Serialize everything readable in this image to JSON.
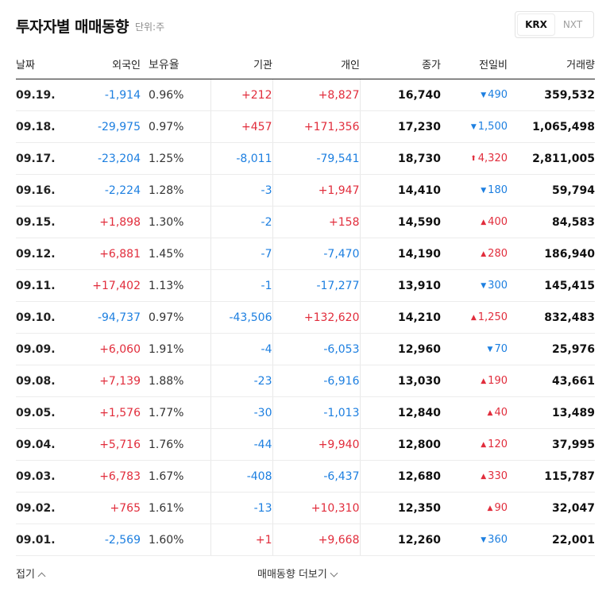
{
  "header": {
    "title": "투자자별 매매동향",
    "unit": "단위:주"
  },
  "market_toggle": {
    "options": [
      "KRX",
      "NXT"
    ],
    "selected": "KRX"
  },
  "columns": [
    "날짜",
    "외국인",
    "보유율",
    "기관",
    "개인",
    "종가",
    "전일비",
    "거래량"
  ],
  "rows": [
    {
      "date": "09.19.",
      "foreign": "-1,914",
      "ratio": "0.96%",
      "inst": "+212",
      "indiv": "+8,827",
      "close": "16,740",
      "change": "490",
      "dir": "down",
      "volume": "359,532"
    },
    {
      "date": "09.18.",
      "foreign": "-29,975",
      "ratio": "0.97%",
      "inst": "+457",
      "indiv": "+171,356",
      "close": "17,230",
      "change": "1,500",
      "dir": "down",
      "volume": "1,065,498"
    },
    {
      "date": "09.17.",
      "foreign": "-23,204",
      "ratio": "1.25%",
      "inst": "-8,011",
      "indiv": "-79,541",
      "close": "18,730",
      "change": "4,320",
      "dir": "upper",
      "volume": "2,811,005"
    },
    {
      "date": "09.16.",
      "foreign": "-2,224",
      "ratio": "1.28%",
      "inst": "-3",
      "indiv": "+1,947",
      "close": "14,410",
      "change": "180",
      "dir": "down",
      "volume": "59,794"
    },
    {
      "date": "09.15.",
      "foreign": "+1,898",
      "ratio": "1.30%",
      "inst": "-2",
      "indiv": "+158",
      "close": "14,590",
      "change": "400",
      "dir": "up",
      "volume": "84,583"
    },
    {
      "date": "09.12.",
      "foreign": "+6,881",
      "ratio": "1.45%",
      "inst": "-7",
      "indiv": "-7,470",
      "close": "14,190",
      "change": "280",
      "dir": "up",
      "volume": "186,940"
    },
    {
      "date": "09.11.",
      "foreign": "+17,402",
      "ratio": "1.13%",
      "inst": "-1",
      "indiv": "-17,277",
      "close": "13,910",
      "change": "300",
      "dir": "down",
      "volume": "145,415"
    },
    {
      "date": "09.10.",
      "foreign": "-94,737",
      "ratio": "0.97%",
      "inst": "-43,506",
      "indiv": "+132,620",
      "close": "14,210",
      "change": "1,250",
      "dir": "up",
      "volume": "832,483"
    },
    {
      "date": "09.09.",
      "foreign": "+6,060",
      "ratio": "1.91%",
      "inst": "-4",
      "indiv": "-6,053",
      "close": "12,960",
      "change": "70",
      "dir": "down",
      "volume": "25,976"
    },
    {
      "date": "09.08.",
      "foreign": "+7,139",
      "ratio": "1.88%",
      "inst": "-23",
      "indiv": "-6,916",
      "close": "13,030",
      "change": "190",
      "dir": "up",
      "volume": "43,661"
    },
    {
      "date": "09.05.",
      "foreign": "+1,576",
      "ratio": "1.77%",
      "inst": "-30",
      "indiv": "-1,013",
      "close": "12,840",
      "change": "40",
      "dir": "up",
      "volume": "13,489"
    },
    {
      "date": "09.04.",
      "foreign": "+5,716",
      "ratio": "1.76%",
      "inst": "-44",
      "indiv": "+9,940",
      "close": "12,800",
      "change": "120",
      "dir": "up",
      "volume": "37,995"
    },
    {
      "date": "09.03.",
      "foreign": "+6,783",
      "ratio": "1.67%",
      "inst": "-408",
      "indiv": "-6,437",
      "close": "12,680",
      "change": "330",
      "dir": "up",
      "volume": "115,787"
    },
    {
      "date": "09.02.",
      "foreign": "+765",
      "ratio": "1.61%",
      "inst": "-13",
      "indiv": "+10,310",
      "close": "12,350",
      "change": "90",
      "dir": "up",
      "volume": "32,047"
    },
    {
      "date": "09.01.",
      "foreign": "-2,569",
      "ratio": "1.60%",
      "inst": "+1",
      "indiv": "+9,668",
      "close": "12,260",
      "change": "360",
      "dir": "down",
      "volume": "22,001"
    }
  ],
  "footer": {
    "fold_label": "접기",
    "more_label": "매매동향 더보기"
  },
  "colors": {
    "up": "#e12d3c",
    "down": "#1d7fe0"
  },
  "icons": {
    "down": "triangle-down-icon",
    "up": "triangle-up-icon",
    "upper": "arrow-up-icon"
  }
}
